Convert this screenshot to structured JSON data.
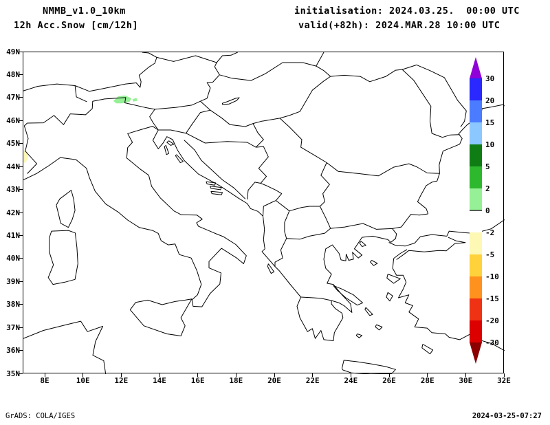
{
  "header": {
    "model": "NMMB_v1.0_10km",
    "product": "12h Acc.Snow [cm/12h]",
    "init": "initialisation: 2024.03.25.  00:00 UTC",
    "valid": "valid(+82h): 2024.MAR.28 10:00 UTC"
  },
  "map": {
    "projection": "latlon",
    "lon_min": 6.85,
    "lon_max": 32.0,
    "lat_min": 35.0,
    "lat_max": 49.0,
    "x_tick_labels": [
      "8E",
      "10E",
      "12E",
      "14E",
      "16E",
      "18E",
      "20E",
      "22E",
      "24E",
      "26E",
      "28E",
      "30E",
      "32E"
    ],
    "y_tick_labels": [
      "49N",
      "48N",
      "47N",
      "46N",
      "45N",
      "44N",
      "43N",
      "42N",
      "41N",
      "40N",
      "39N",
      "38N",
      "37N",
      "36N",
      "35N"
    ],
    "snow_patches": [
      {
        "name": "alpine-snow-patch",
        "value_bin": "0-2 cm",
        "fill": "#96f096",
        "outline": [
          [
            11.55,
            46.88
          ],
          [
            11.8,
            47.08
          ],
          [
            12.15,
            47.12
          ],
          [
            12.5,
            47.0
          ],
          [
            12.4,
            46.85
          ],
          [
            12.0,
            46.78
          ],
          [
            11.7,
            46.78
          ]
        ]
      },
      {
        "name": "alpine-snow-patch-small",
        "value_bin": "0-2 cm",
        "fill": "#96f096",
        "outline": [
          [
            12.55,
            46.95
          ],
          [
            12.75,
            47.02
          ],
          [
            12.82,
            46.9
          ],
          [
            12.6,
            46.85
          ]
        ]
      },
      {
        "name": "west-edge-patch",
        "value_bin": "-2-0",
        "fill": "#fdf8b4",
        "outline": [
          [
            6.85,
            44.75
          ],
          [
            7.05,
            44.6
          ],
          [
            7.1,
            44.4
          ],
          [
            6.95,
            44.18
          ],
          [
            6.85,
            44.22
          ]
        ]
      }
    ]
  },
  "colorbar": {
    "labels": [
      "30",
      "20",
      "15",
      "10",
      "5",
      "2",
      "0",
      "-2",
      "-5",
      "-10",
      "-15",
      "-20",
      "-30"
    ],
    "zero_level_index": 6,
    "colors_top_to_bottom": [
      "#9000d8",
      "#2828ff",
      "#4b7bff",
      "#8cc8ff",
      "#0f7d14",
      "#2eb82e",
      "#96f096",
      "#ffffff",
      "#fdf8b4",
      "#ffd23c",
      "#ff911e",
      "#f03214",
      "#dc0000",
      "#8c0000"
    ]
  },
  "footer": {
    "credit": "GrADS: COLA/IGES",
    "timestamp": "2024-03-25-07:27"
  }
}
